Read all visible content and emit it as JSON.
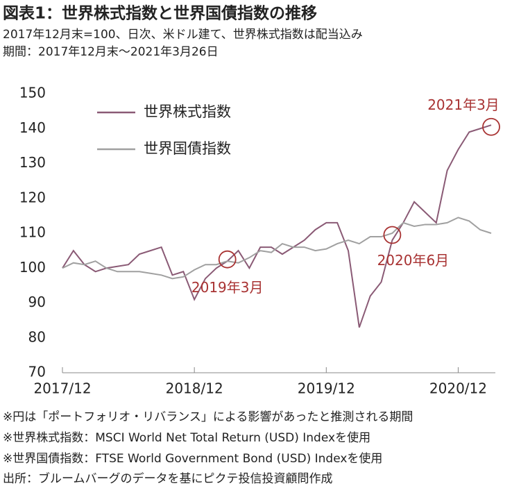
{
  "chart_data": {
    "type": "line",
    "title": "図表1：世界株式指数と世界国債指数の推移",
    "subtitle": [
      "2017年12月末=100、日次、米ドル建て、世界株式指数は配当込み",
      "期間：2017年12月末～2021年3月26日"
    ],
    "x": [
      "2017/12",
      "2018/01",
      "2018/02",
      "2018/03",
      "2018/04",
      "2018/05",
      "2018/06",
      "2018/07",
      "2018/08",
      "2018/09",
      "2018/10",
      "2018/11",
      "2018/12",
      "2019/01",
      "2019/02",
      "2019/03",
      "2019/04",
      "2019/05",
      "2019/06",
      "2019/07",
      "2019/08",
      "2019/09",
      "2019/10",
      "2019/11",
      "2019/12",
      "2020/01",
      "2020/02",
      "2020/03",
      "2020/04",
      "2020/05",
      "2020/06",
      "2020/07",
      "2020/08",
      "2020/09",
      "2020/10",
      "2020/11",
      "2020/12",
      "2021/01",
      "2021/02",
      "2021/03"
    ],
    "series": [
      {
        "name": "世界株式指数",
        "color": "#8a5a75",
        "values": [
          100,
          105,
          101,
          99,
          100,
          100.5,
          101,
          104,
          105,
          106,
          98,
          99,
          91,
          97,
          100,
          102,
          105,
          100,
          106,
          106,
          104,
          106,
          108,
          111,
          113,
          113,
          105,
          83,
          92,
          96,
          108,
          113,
          119,
          116,
          113,
          128,
          134,
          139,
          140,
          141
        ]
      },
      {
        "name": "世界国債指数",
        "color": "#a0a0a0",
        "values": [
          100,
          101.5,
          101,
          102,
          100,
          99,
          99,
          99,
          98.5,
          98,
          97,
          97.5,
          99.5,
          101,
          101,
          102,
          101.5,
          103,
          105,
          104.5,
          107,
          106,
          106,
          105,
          105.5,
          107,
          108,
          107,
          109,
          109,
          110,
          113,
          112,
          112.5,
          112.5,
          113,
          114.5,
          113.5,
          111,
          110
        ]
      }
    ],
    "xlim": [
      "2017/12",
      "2021/03"
    ],
    "xticks": [
      "2017/12",
      "2018/12",
      "2019/12",
      "2020/12"
    ],
    "ylim": [
      70,
      150
    ],
    "yticks": [
      70,
      80,
      90,
      100,
      110,
      120,
      130,
      140,
      150
    ],
    "annotations": [
      {
        "text": "2019年3月",
        "x": "2019/03",
        "y": 102.5
      },
      {
        "text": "2020年6月",
        "x": "2020/06",
        "y": 109.5
      },
      {
        "text": "2021年3月",
        "x": "2021/03",
        "y": 140.5
      }
    ],
    "notes": [
      "※円は「ポートフォリオ・リバランス」による影響があったと推測される期間",
      "※世界株式指数：MSCI World Net Total Return (USD) Indexを使用",
      "※世界国債指数：FTSE World Government Bond (USD) Indexを使用",
      "出所：ブルームバーグのデータを基にピクテ投信投資顧問作成"
    ]
  }
}
